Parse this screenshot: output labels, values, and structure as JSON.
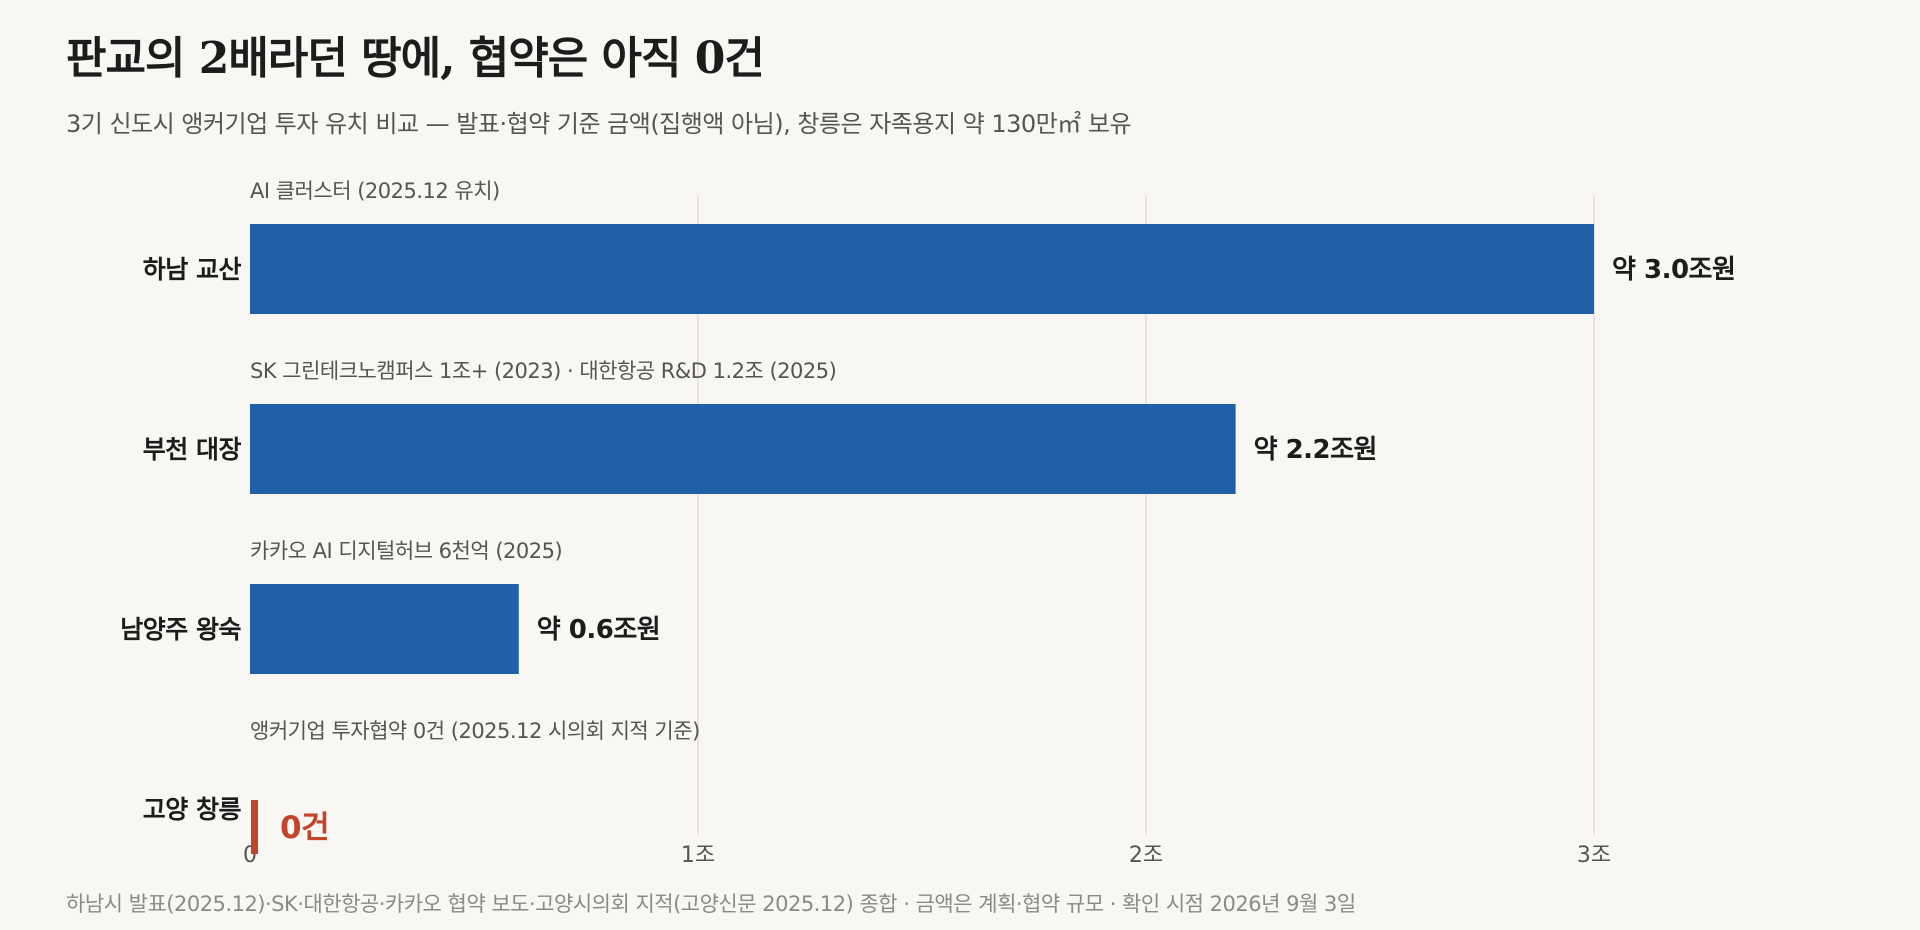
{
  "title": "판교의 2배라던 땅에, 협약은 아직 0건",
  "subtitle": "3기 신도시 앵커기업 투자 유치 비교 — 발표·협약 기준 금액(집행액 아님), 창릉은 자족용지 약 130만㎡ 보유",
  "source": "하남시 발표(2025.12)·SK·대한항공·카카오 협약 보도·고양시의회 지적(고양신문 2025.12) 종합 · 금액은 계획·협약 규모 · 확인 시점 2026년 9월 3일",
  "colors": {
    "bar": "#2060a8",
    "zero_bar": "#c0452b",
    "zero_text": "#c0452b",
    "background": "#f9f7f3"
  },
  "chart_data": {
    "type": "bar",
    "orientation": "horizontal",
    "unit": "조원",
    "categories": [
      "하남 교산",
      "부천 대장",
      "남양주 왕숙",
      "고양 창릉"
    ],
    "values": [
      3.0,
      2.2,
      0.6,
      0
    ],
    "value_labels": [
      "약 3.0조원",
      "약 2.2조원",
      "약 0.6조원",
      "0건"
    ],
    "notes": [
      "AI 클러스터 (2025.12 유치)",
      "SK 그린테크노캠퍼스 1조+ (2023) · 대한항공 R&D 1.2조 (2025)",
      "카카오 AI 디지털허브 6천억 (2025)",
      "앵커기업 투자협약 0건 (2025.12 시의회 지적 기준)"
    ],
    "xlim": [
      0,
      3
    ],
    "xticks": [
      0,
      1,
      2,
      3
    ],
    "xtick_labels": [
      "0",
      "1조",
      "2조",
      "3조"
    ],
    "grid": true
  }
}
